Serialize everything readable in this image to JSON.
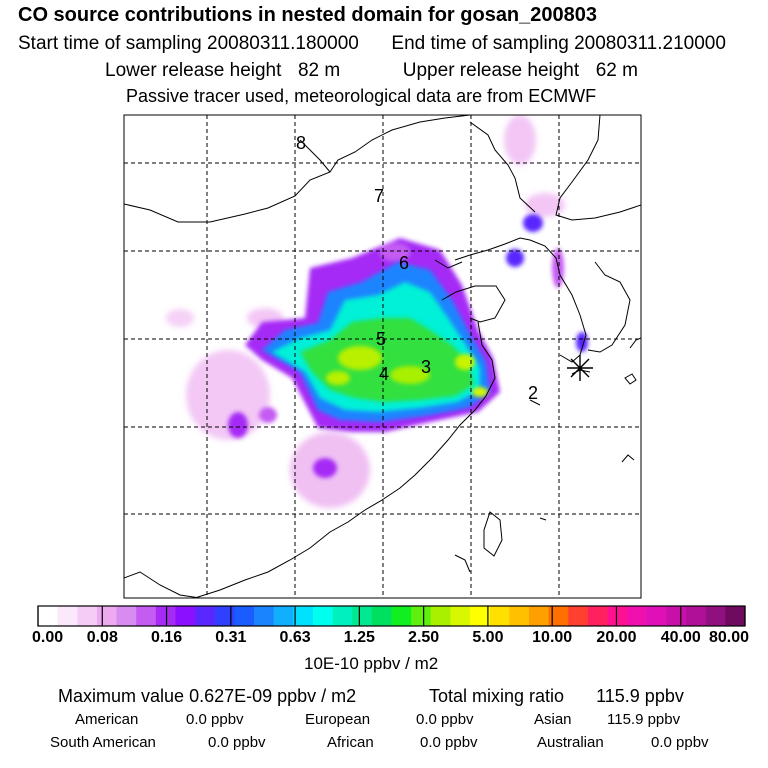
{
  "header": {
    "title": "CO  source contributions in nested domain for gosan_200803",
    "start_label": "Start time of sampling",
    "start_value": "20080311.180000",
    "end_label": "End time of sampling",
    "end_value": "20080311.210000",
    "lower_label": "Lower release height",
    "lower_value": "82 m",
    "upper_label": "Upper release height",
    "upper_value": "62 m",
    "tracer_note": "Passive tracer used, meteorological data are from ECMWF"
  },
  "map": {
    "region_labels": [
      "8",
      "7",
      "6",
      "5",
      "4",
      "3",
      "2"
    ],
    "receptor_marker": "asterisk-receptor-icon"
  },
  "colorbar": {
    "tick_labels": [
      "0.00",
      "0.08",
      "0.16",
      "0.31",
      "0.63",
      "1.25",
      "2.50",
      "5.00",
      "10.00",
      "20.00",
      "40.00",
      "80.00"
    ],
    "units": "10E-10 ppbv / m2",
    "colors": [
      "#ffffff",
      "#fbe8fb",
      "#f5ccf5",
      "#eeaaf0",
      "#d98cf0",
      "#c45cf2",
      "#a62bf5",
      "#8b10ff",
      "#5a28ff",
      "#3040ff",
      "#1a5cff",
      "#1a84ff",
      "#10b0ff",
      "#00e0ff",
      "#00ffee",
      "#00f0c0",
      "#00e890",
      "#00e060",
      "#10f020",
      "#60f010",
      "#a8f000",
      "#d8f800",
      "#ffff00",
      "#ffe000",
      "#ffc000",
      "#ffa000",
      "#ff7000",
      "#ff4030",
      "#ff2060",
      "#ff1090",
      "#f010b0",
      "#e010b8",
      "#c810a8",
      "#b01098",
      "#901080",
      "#700a60"
    ]
  },
  "summary": {
    "max_label": "Maximum value",
    "max_value": "0.627E-09 ppbv / m2",
    "total_label": "Total mixing ratio",
    "total_value": "115.9 ppbv",
    "regions": [
      {
        "name": "American",
        "value": "0.0 ppbv"
      },
      {
        "name": "European",
        "value": "0.0 ppbv"
      },
      {
        "name": "Asian",
        "value": "115.9 ppbv"
      },
      {
        "name": "South American",
        "value": "0.0 ppbv"
      },
      {
        "name": "African",
        "value": "0.0 ppbv"
      },
      {
        "name": "Australian",
        "value": "0.0 ppbv"
      }
    ]
  }
}
